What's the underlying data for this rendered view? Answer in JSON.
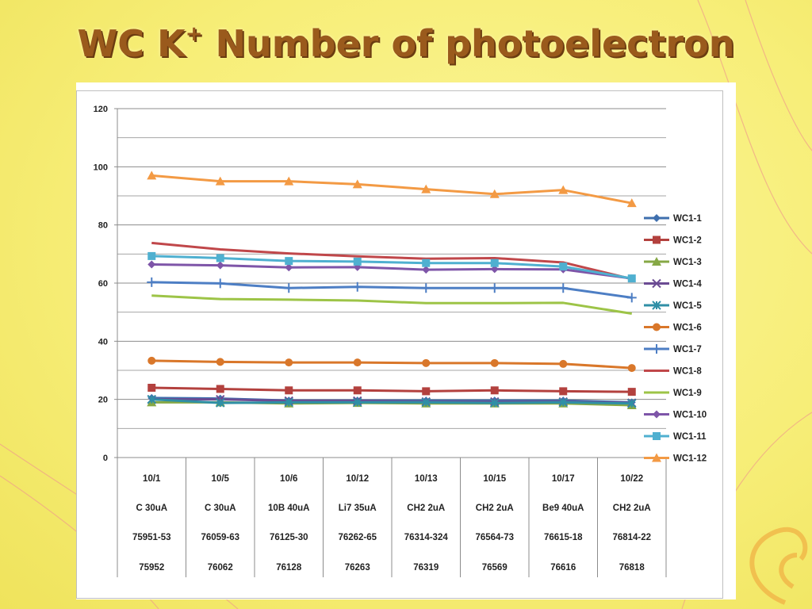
{
  "slide": {
    "title_main": "WC K",
    "title_sup": "+",
    "title_rest": " Number of photoelectron"
  },
  "chart_data": {
    "type": "line",
    "title": "",
    "xlabel": "",
    "ylabel": "",
    "ylim": [
      0,
      120
    ],
    "y_ticks": [
      0,
      20,
      40,
      60,
      80,
      100,
      120
    ],
    "grid": "horizontal",
    "legend_placement": "right",
    "categories": [
      [
        "10/1",
        "C 30uA",
        "75951-53",
        "75952"
      ],
      [
        "10/5",
        "C 30uA",
        "76059-63",
        "76062"
      ],
      [
        "10/6",
        "10B 40uA",
        "76125-30",
        "76128"
      ],
      [
        "10/12",
        "Li7 35uA",
        "76262-65",
        "76263"
      ],
      [
        "10/13",
        "CH2 2uA",
        "76314-324",
        "76319"
      ],
      [
        "10/15",
        "CH2 2uA",
        "76564-73",
        "76569"
      ],
      [
        "10/17",
        "Be9 40uA",
        "76615-18",
        "76616"
      ],
      [
        "10/22",
        "CH2 2uA",
        "76814-22",
        "76818"
      ]
    ],
    "series": [
      {
        "name": "WC1-1",
        "color": "#3f6fae",
        "marker": "diamond",
        "values": [
          20.5,
          20.3,
          19.6,
          19.6,
          19.6,
          19.6,
          19.6,
          19.0
        ]
      },
      {
        "name": "WC1-2",
        "color": "#b3413e",
        "marker": "square",
        "values": [
          24.0,
          23.6,
          23.1,
          23.1,
          22.8,
          23.1,
          22.8,
          22.6
        ]
      },
      {
        "name": "WC1-3",
        "color": "#86a845",
        "marker": "triangle",
        "values": [
          19.0,
          19.0,
          18.6,
          18.8,
          18.6,
          18.6,
          18.6,
          18.0
        ]
      },
      {
        "name": "WC1-4",
        "color": "#6b4b93",
        "marker": "x",
        "values": [
          20.0,
          20.0,
          19.5,
          19.5,
          19.2,
          19.2,
          19.2,
          18.8
        ]
      },
      {
        "name": "WC1-5",
        "color": "#2f8fa6",
        "marker": "star",
        "values": [
          20.0,
          18.8,
          19.0,
          19.0,
          19.0,
          18.8,
          19.0,
          18.6
        ]
      },
      {
        "name": "WC1-6",
        "color": "#d9772a",
        "marker": "circle",
        "values": [
          33.3,
          32.9,
          32.7,
          32.7,
          32.5,
          32.5,
          32.2,
          30.8
        ]
      },
      {
        "name": "WC1-7",
        "color": "#4d7ec4",
        "marker": "plus",
        "values": [
          60.3,
          59.9,
          58.3,
          58.7,
          58.3,
          58.3,
          58.3,
          55.0
        ]
      },
      {
        "name": "WC1-8",
        "color": "#c0474a",
        "marker": "none",
        "values": [
          73.8,
          71.6,
          70.2,
          69.2,
          68.4,
          68.6,
          67.1,
          61.4
        ]
      },
      {
        "name": "WC1-9",
        "color": "#9dc447",
        "marker": "none",
        "values": [
          55.7,
          54.5,
          54.3,
          54.0,
          53.1,
          53.1,
          53.2,
          49.5
        ]
      },
      {
        "name": "WC1-10",
        "color": "#7e55a8",
        "marker": "diamond",
        "values": [
          66.4,
          66.1,
          65.4,
          65.5,
          64.6,
          64.8,
          64.7,
          61.6
        ]
      },
      {
        "name": "WC1-11",
        "color": "#4fb0d0",
        "marker": "square",
        "values": [
          69.3,
          68.6,
          67.6,
          67.4,
          66.9,
          66.9,
          65.7,
          61.6
        ]
      },
      {
        "name": "WC1-12",
        "color": "#f39a44",
        "marker": "triangle",
        "values": [
          97.0,
          95.0,
          95.0,
          94.0,
          92.3,
          90.6,
          92.0,
          87.5
        ]
      }
    ]
  }
}
